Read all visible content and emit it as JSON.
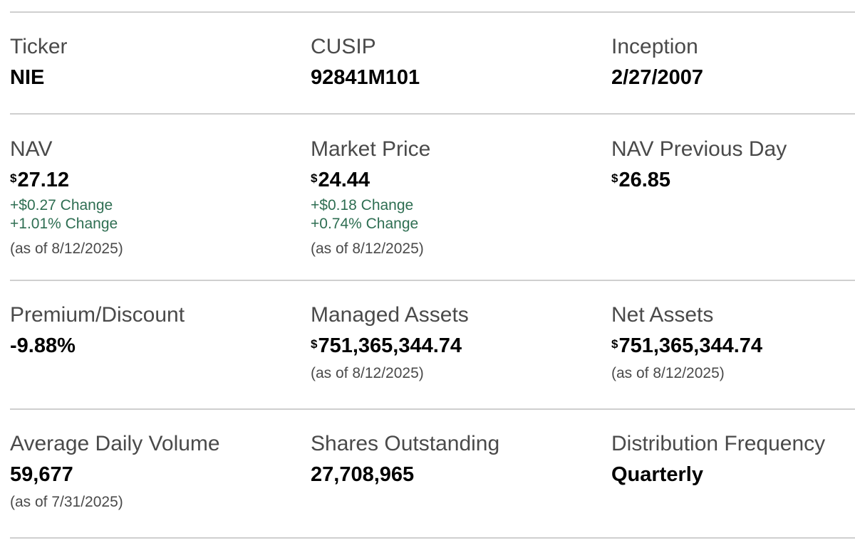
{
  "row1": {
    "ticker": {
      "label": "Ticker",
      "value": "NIE"
    },
    "cusip": {
      "label": "CUSIP",
      "value": "92841M101"
    },
    "inception": {
      "label": "Inception",
      "value": "2/27/2007"
    }
  },
  "row2": {
    "nav": {
      "label": "NAV",
      "currency": "$",
      "value": "27.12",
      "change_amount": "+$0.27 Change",
      "change_percent": "+1.01% Change",
      "as_of": "(as of 8/12/2025)"
    },
    "market_price": {
      "label": "Market Price",
      "currency": "$",
      "value": "24.44",
      "change_amount": "+$0.18 Change",
      "change_percent": "+0.74% Change",
      "as_of": "(as of 8/12/2025)"
    },
    "nav_previous_day": {
      "label": "NAV Previous Day",
      "currency": "$",
      "value": "26.85"
    }
  },
  "row3": {
    "premium_discount": {
      "label": "Premium/Discount",
      "value": "-9.88%"
    },
    "managed_assets": {
      "label": "Managed Assets",
      "currency": "$",
      "value": "751,365,344.74",
      "as_of": "(as of 8/12/2025)"
    },
    "net_assets": {
      "label": "Net Assets",
      "currency": "$",
      "value": "751,365,344.74",
      "as_of": "(as of 8/12/2025)"
    }
  },
  "row4": {
    "average_daily_volume": {
      "label": "Average Daily Volume",
      "value": "59,677",
      "as_of": "(as of 7/31/2025)"
    },
    "shares_outstanding": {
      "label": "Shares Outstanding",
      "value": "27,708,965"
    },
    "distribution_frequency": {
      "label": "Distribution Frequency",
      "value": "Quarterly"
    }
  },
  "colors": {
    "label_text": "#4a4a4a",
    "value_text": "#000000",
    "positive_change": "#2e6e52",
    "divider": "#cfcfcf"
  }
}
